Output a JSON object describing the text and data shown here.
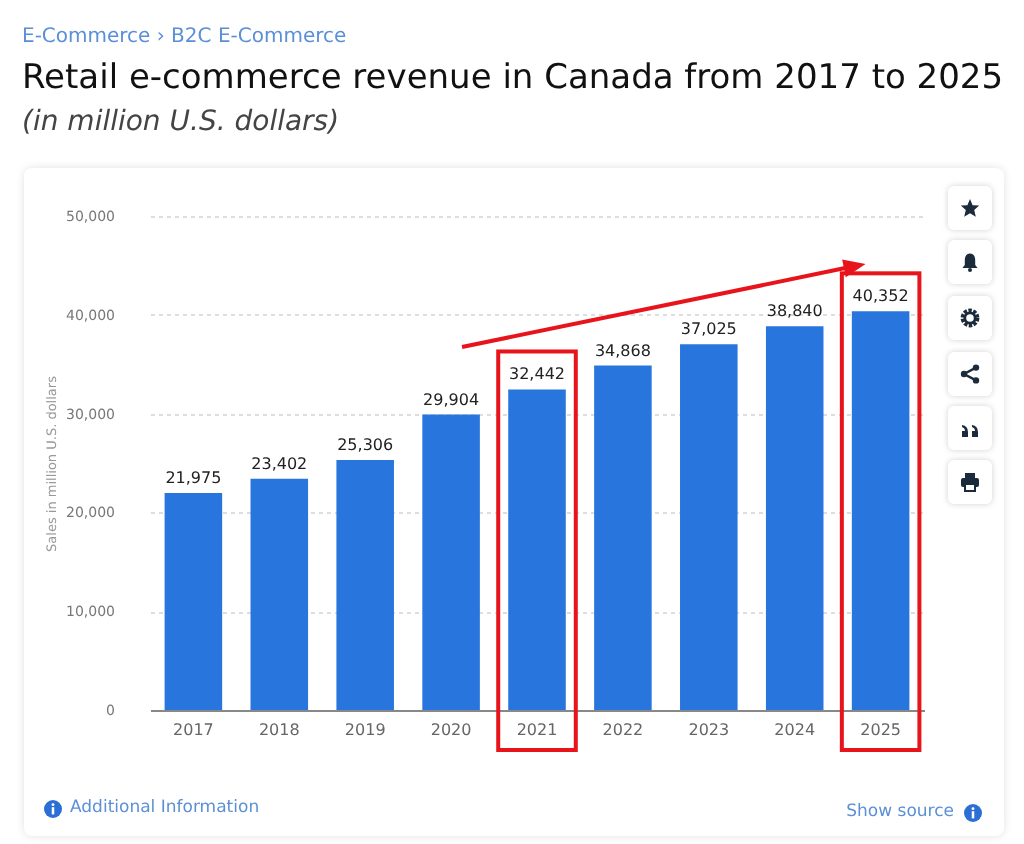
{
  "chart_data": {
    "type": "bar",
    "title": "Retail e-commerce revenue in Canada from 2017 to 2025",
    "subtitle": "(in million U.S. dollars)",
    "ylabel": "Sales in million U.S. dollars",
    "annotations": [
      "E-Commerce › B2C E-Commerce",
      "Additional Information",
      "Show source"
    ],
    "categories": [
      "2017",
      "2018",
      "2019",
      "2020",
      "2021",
      "2022",
      "2023",
      "2024",
      "2025"
    ],
    "values": [
      21975,
      23402,
      25306,
      29904,
      32442,
      34868,
      37025,
      38840,
      40352
    ],
    "value_labels": [
      "21,975",
      "23,402",
      "25,306",
      "29,904",
      "32,442",
      "34,868",
      "37,025",
      "38,840",
      "40,352"
    ],
    "color": "#2876dd",
    "ylim": [
      0,
      50000
    ],
    "yticks": [
      0,
      {
        "value": 10000,
        "label": "10,000"
      },
      {
        "value": 20000,
        "label": "20,000"
      },
      {
        "value": 30000,
        "label": "30,000"
      },
      {
        "value": 40000,
        "label": "40,000"
      },
      {
        "value": 50000,
        "label": "50,000"
      }
    ],
    "grid": "y"
  }
}
